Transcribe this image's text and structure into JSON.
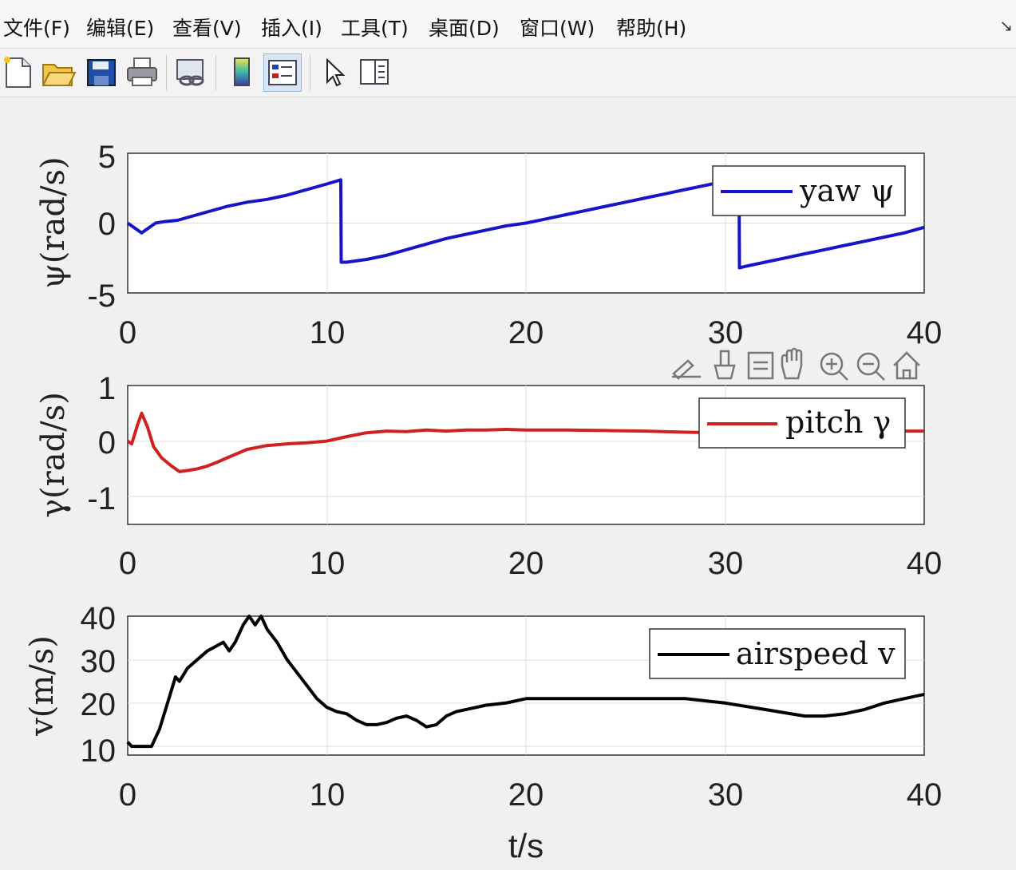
{
  "menu": {
    "items": [
      "文件(F)",
      "编辑(E)",
      "查看(V)",
      "插入(I)",
      "工具(T)",
      "桌面(D)",
      "窗口(W)",
      "帮助(H)"
    ],
    "overflow_icon": "arrow-dock-icon"
  },
  "toolbar": {
    "buttons": [
      "new-figure-icon",
      "open-file-icon",
      "save-icon",
      "print-icon",
      "link-plot-icon",
      "insert-colorbar-icon",
      "insert-legend-icon",
      "edit-plot-arrow-icon",
      "property-inspector-icon"
    ]
  },
  "axes_toolbar": {
    "buttons": [
      "brush-edit-icon",
      "data-brush-icon",
      "data-tips-icon",
      "pan-hand-icon",
      "zoom-in-icon",
      "zoom-out-icon",
      "home-restore-icon"
    ]
  },
  "chart_data": [
    {
      "type": "line",
      "ylabel": "ψ(rad/s)",
      "xlim": [
        0,
        40
      ],
      "ylim": [
        -5,
        5
      ],
      "x_ticks": [
        "0",
        "10",
        "20",
        "30",
        "40"
      ],
      "y_ticks": [
        "5",
        "0",
        "-5"
      ],
      "grid": true,
      "legend_position": "top-right",
      "series": [
        {
          "name": "yaw ψ",
          "color": "#1515c8",
          "x": [
            0,
            0.3,
            0.7,
            1.0,
            1.4,
            1.8,
            2.5,
            3,
            4,
            5,
            6,
            7,
            8,
            9,
            10,
            10.7,
            10.72,
            11,
            12,
            13,
            14,
            15,
            16,
            17,
            18,
            19,
            20,
            21,
            22,
            23,
            24,
            25,
            26,
            27,
            28,
            29,
            30,
            30.7,
            30.72,
            31,
            32,
            33,
            34,
            35,
            36,
            37,
            38,
            39,
            40
          ],
          "y": [
            0,
            -0.3,
            -0.7,
            -0.4,
            0,
            0.1,
            0.2,
            0.4,
            0.8,
            1.2,
            1.5,
            1.7,
            2.0,
            2.4,
            2.8,
            3.1,
            -2.8,
            -2.8,
            -2.6,
            -2.3,
            -1.9,
            -1.5,
            -1.1,
            -0.8,
            -0.5,
            -0.2,
            0,
            0.3,
            0.6,
            0.9,
            1.2,
            1.5,
            1.8,
            2.1,
            2.4,
            2.7,
            3.0,
            3.2,
            -3.2,
            -3.1,
            -2.8,
            -2.5,
            -2.2,
            -1.9,
            -1.6,
            -1.3,
            -1.0,
            -0.7,
            -0.3
          ]
        }
      ]
    },
    {
      "type": "line",
      "ylabel": "γ(rad/s)",
      "xlim": [
        0,
        40
      ],
      "ylim": [
        -1.5,
        1
      ],
      "x_ticks": [
        "0",
        "10",
        "20",
        "30",
        "40"
      ],
      "y_ticks": [
        "1",
        "0",
        "-1"
      ],
      "grid": true,
      "legend_position": "top-right",
      "series": [
        {
          "name": "pitch γ",
          "color": "#d02020",
          "x": [
            0,
            0.2,
            0.5,
            0.7,
            1.0,
            1.3,
            1.7,
            2.2,
            2.6,
            3,
            3.5,
            4,
            4.5,
            5,
            6,
            7,
            8,
            9,
            10,
            11,
            12,
            13,
            14,
            15,
            16,
            17,
            18,
            19,
            20,
            22,
            24,
            26,
            28,
            30,
            32,
            34,
            36,
            38,
            40
          ],
          "y": [
            0,
            -0.05,
            0.3,
            0.5,
            0.25,
            -0.1,
            -0.3,
            -0.45,
            -0.55,
            -0.53,
            -0.5,
            -0.45,
            -0.38,
            -0.3,
            -0.15,
            -0.08,
            -0.05,
            -0.03,
            0,
            0.08,
            0.15,
            0.18,
            0.17,
            0.2,
            0.18,
            0.2,
            0.2,
            0.21,
            0.2,
            0.2,
            0.19,
            0.18,
            0.16,
            0.15,
            0.16,
            0.17,
            0.18,
            0.18,
            0.18
          ]
        }
      ]
    },
    {
      "type": "line",
      "ylabel": "v(m/s)",
      "xlabel": "t/s",
      "xlim": [
        0,
        40
      ],
      "ylim": [
        8,
        40
      ],
      "x_ticks": [
        "0",
        "10",
        "20",
        "30",
        "40"
      ],
      "y_ticks": [
        "40",
        "30",
        "20",
        "10"
      ],
      "grid": true,
      "legend_position": "top-right",
      "series": [
        {
          "name": "airspeed v",
          "color": "#000000",
          "x": [
            0,
            0.2,
            0.4,
            0.8,
            1.2,
            1.6,
            2,
            2.4,
            2.6,
            3,
            3.5,
            4,
            4.4,
            4.8,
            5.1,
            5.4,
            5.8,
            6.1,
            6.4,
            6.7,
            7,
            7.5,
            8,
            8.5,
            9,
            9.5,
            10,
            10.5,
            11,
            11.5,
            12,
            12.5,
            13,
            13.5,
            14,
            14.5,
            15,
            15.5,
            16,
            16.5,
            17,
            18,
            19,
            20,
            21,
            22,
            24,
            26,
            28,
            30,
            32,
            34,
            35,
            36,
            37,
            38,
            39,
            40
          ],
          "y": [
            11,
            10,
            10,
            10,
            10,
            14,
            20,
            26,
            25,
            28,
            30,
            32,
            33,
            34,
            32,
            34,
            38,
            40,
            38,
            40,
            37,
            34,
            30,
            27,
            24,
            21,
            19,
            18,
            17.5,
            16,
            15,
            15,
            15.5,
            16.5,
            17,
            16,
            14.5,
            15,
            17,
            18,
            18.5,
            19.5,
            20,
            21,
            21,
            21,
            21,
            21,
            21,
            20,
            18.5,
            17,
            17,
            17.5,
            18.5,
            20,
            21,
            22
          ]
        }
      ]
    }
  ]
}
